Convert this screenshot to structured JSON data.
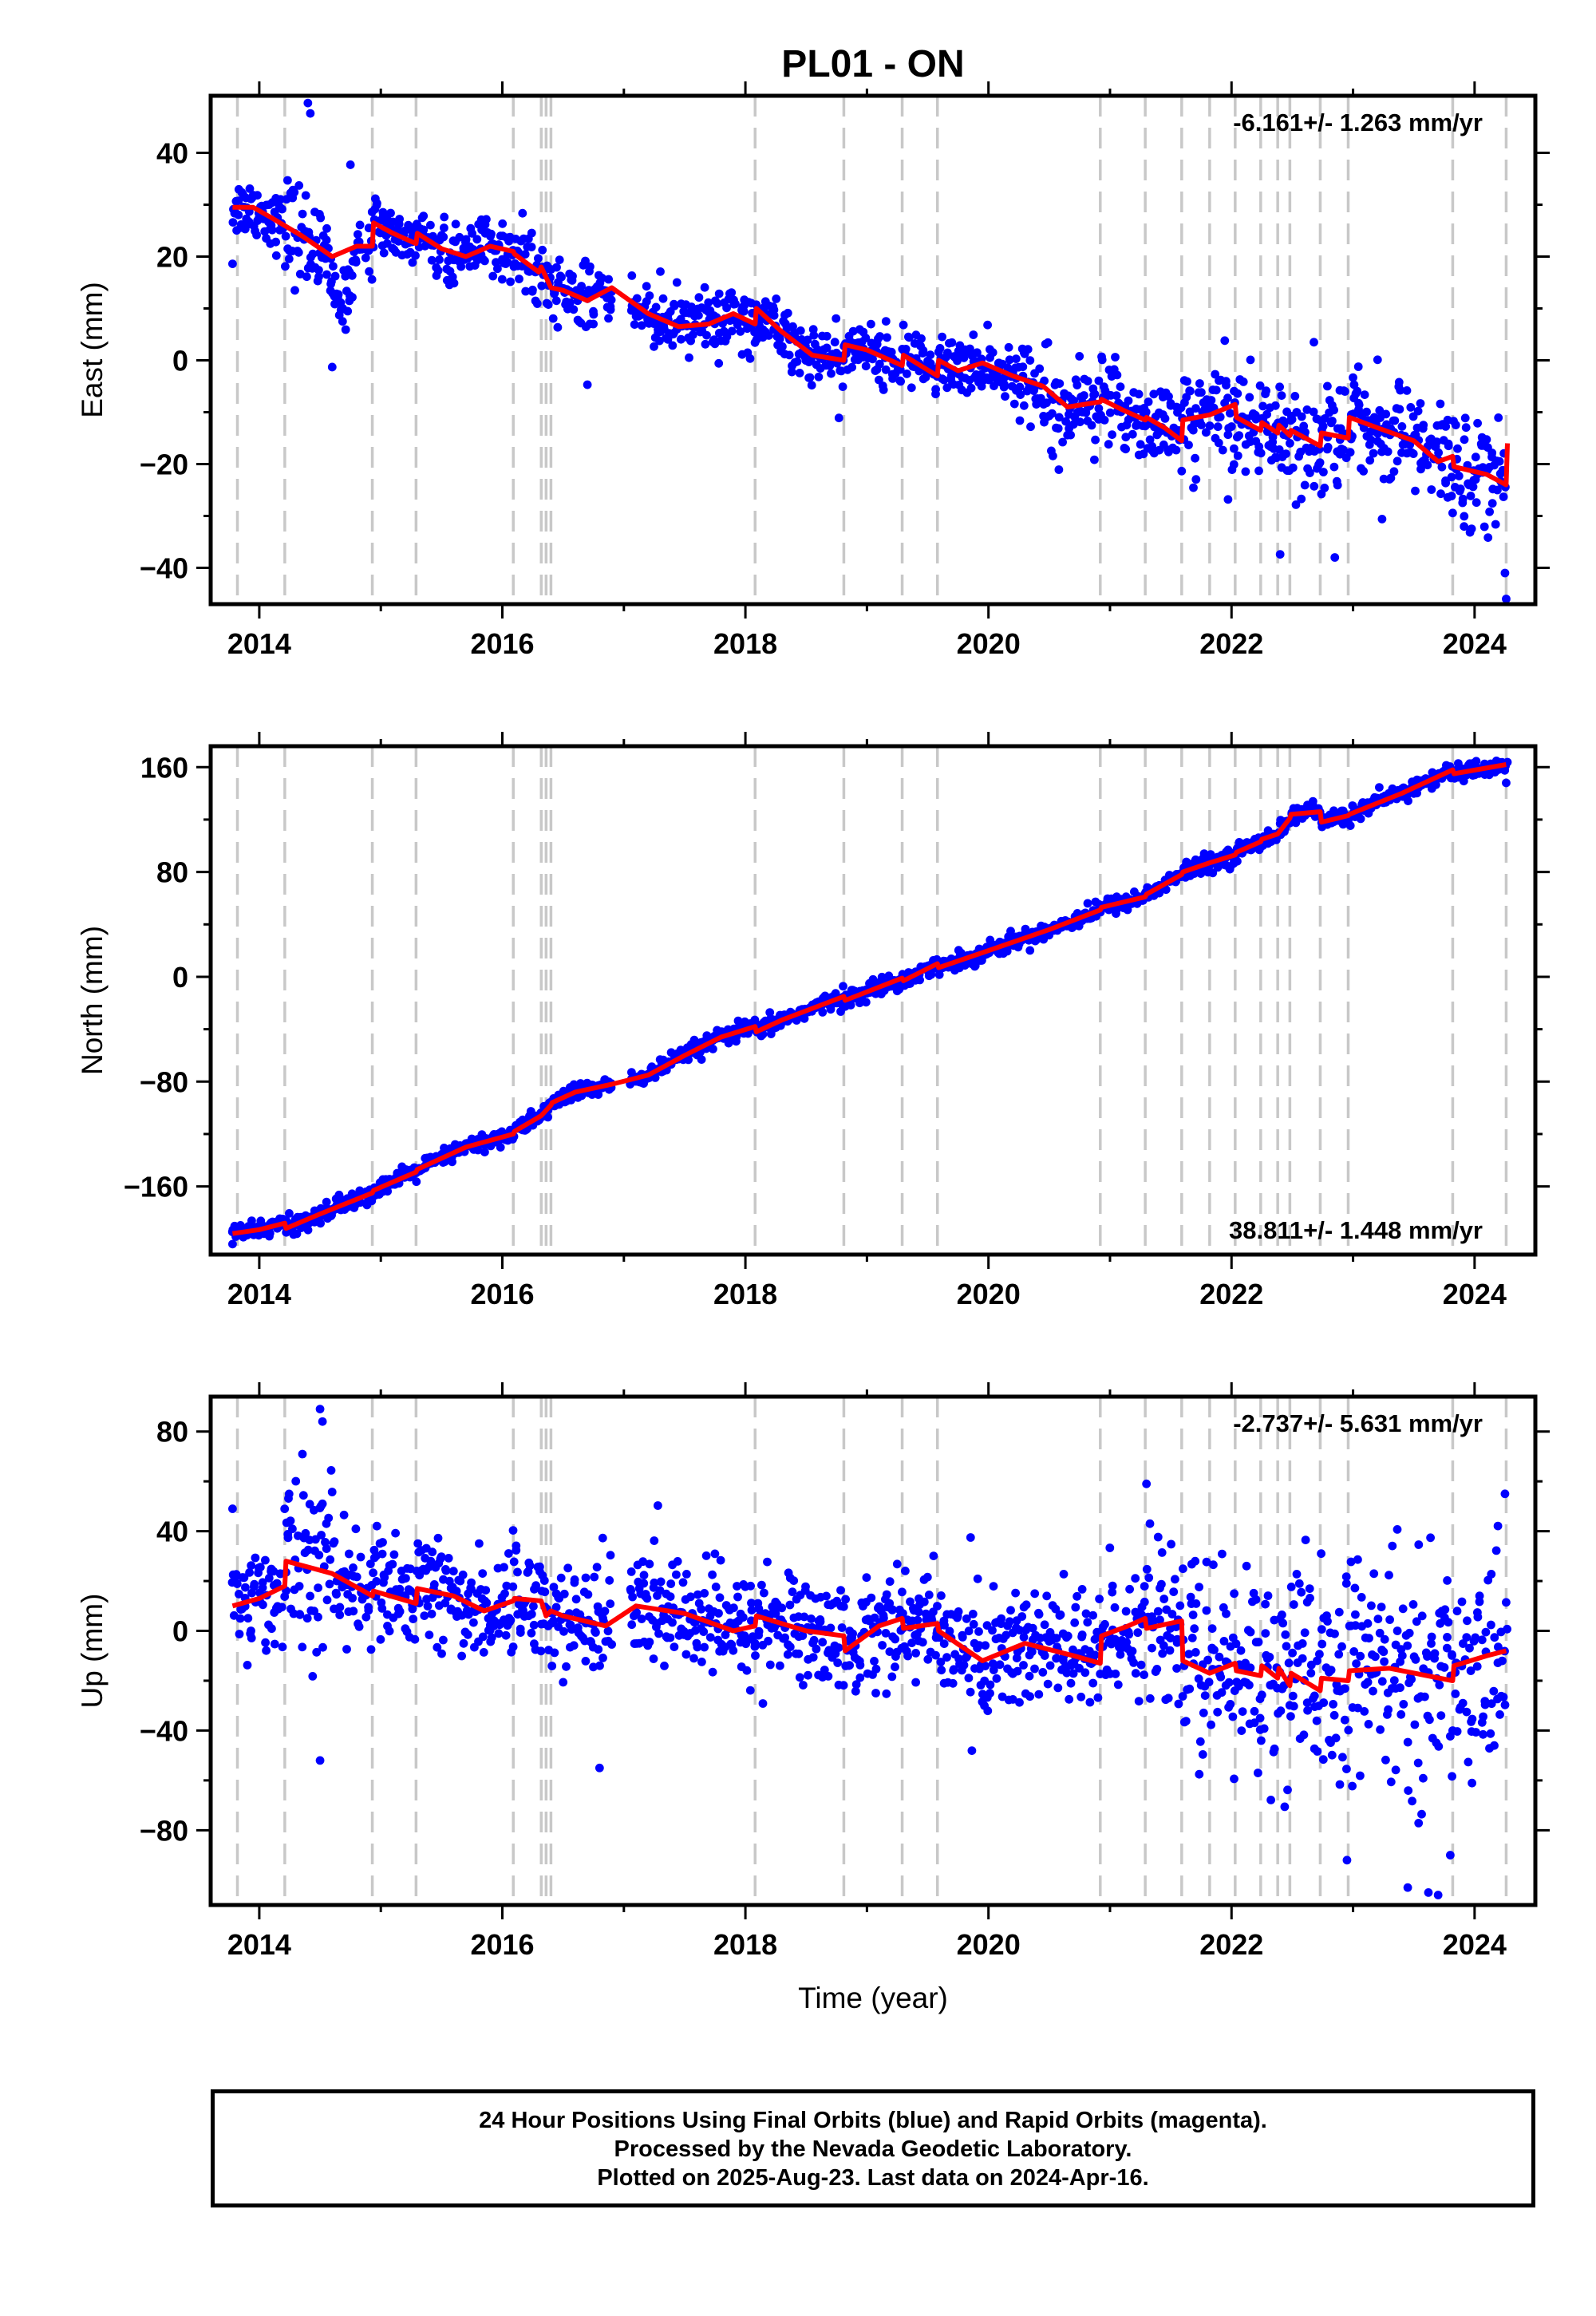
{
  "title": "PL01 - ON",
  "x_axis_label": "Time (year)",
  "footer": {
    "line1": "24 Hour Positions Using Final Orbits (blue) and Rapid Orbits (magenta).",
    "line2": "Processed by the Nevada Geodetic Laboratory.",
    "line3": "Plotted on 2025-Aug-23. Last data on 2024-Apr-16."
  },
  "colors": {
    "points": "#0000ff",
    "fit": "#ff0000",
    "steps": "#c8c8c8",
    "frame": "#000000"
  },
  "chart_data": [
    {
      "type": "scatter",
      "component": "East",
      "ylabel": "East (mm)",
      "rate_label": "-6.161+/- 1.263 mm/yr",
      "xlim": [
        2013.6,
        2024.5
      ],
      "ylim": [
        -47,
        51
      ],
      "x_ticks": [
        "2014",
        "2016",
        "2018",
        "2020",
        "2022",
        "2024"
      ],
      "y_ticks": [
        40,
        20,
        0,
        -20,
        -40
      ],
      "step_epochs": [
        2013.82,
        2014.21,
        2014.93,
        2015.29,
        2016.09,
        2016.32,
        2016.36,
        2016.4,
        2018.08,
        2018.81,
        2019.29,
        2019.58,
        2020.92,
        2021.29,
        2021.59,
        2021.82,
        2022.03,
        2022.24,
        2022.38,
        2022.48,
        2022.73,
        2022.96,
        2023.82,
        2024.26
      ],
      "fit": {
        "x": [
          2013.78,
          2013.95,
          2014.1,
          2014.35,
          2014.6,
          2014.8,
          2014.93,
          2014.94,
          2015.1,
          2015.29,
          2015.3,
          2015.5,
          2015.7,
          2015.9,
          2016.09,
          2016.1,
          2016.3,
          2016.32,
          2016.36,
          2016.4,
          2016.5,
          2016.7,
          2016.9,
          2017.2,
          2017.45,
          2017.7,
          2017.9,
          2018.08,
          2018.09,
          2018.3,
          2018.55,
          2018.81,
          2018.82,
          2019.0,
          2019.29,
          2019.3,
          2019.58,
          2019.59,
          2019.75,
          2019.95,
          2020.2,
          2020.45,
          2020.65,
          2020.92,
          2020.93,
          2021.1,
          2021.29,
          2021.3,
          2021.45,
          2021.59,
          2021.6,
          2021.82,
          2022.03,
          2022.04,
          2022.24,
          2022.25,
          2022.38,
          2022.39,
          2022.48,
          2022.49,
          2022.73,
          2022.74,
          2022.96,
          2022.97,
          2023.2,
          2023.5,
          2023.7,
          2023.82,
          2023.83,
          2024.1,
          2024.26,
          2024.27
        ],
        "y": [
          29.5,
          29.5,
          27.5,
          24,
          20,
          22,
          22,
          26.5,
          24.5,
          22.5,
          24.5,
          21.5,
          20,
          22,
          21,
          20.5,
          17,
          18,
          16,
          14,
          13.5,
          11.5,
          14,
          9,
          6.5,
          7,
          9,
          7,
          10,
          5.5,
          1,
          0,
          3,
          2,
          -1,
          1,
          -3,
          0,
          -2,
          -0.5,
          -3,
          -5,
          -9,
          -8,
          -7.5,
          -9.5,
          -11.5,
          -11,
          -13,
          -15.5,
          -11.5,
          -10.5,
          -8.5,
          -11,
          -13.5,
          -12,
          -14,
          -12.5,
          -14.5,
          -13.5,
          -16.5,
          -14,
          -15,
          -11,
          -13,
          -15.5,
          -19.5,
          -18.5,
          -20.5,
          -22,
          -24,
          -16
        ]
      },
      "samples": [
        {
          "x": 2013.78,
          "y": 18.6
        },
        {
          "x": 2014.4,
          "y": 49.6
        },
        {
          "x": 2014.42,
          "y": 47.6
        },
        {
          "x": 2014.6,
          "y": -1.3
        },
        {
          "x": 2014.75,
          "y": 37.7
        },
        {
          "x": 2016.7,
          "y": -4.7
        },
        {
          "x": 2022.4,
          "y": -37.4
        },
        {
          "x": 2022.85,
          "y": -38.0
        },
        {
          "x": 2024.26,
          "y": -46.0
        },
        {
          "x": 2024.25,
          "y": -41.0
        },
        {
          "x": 2023.05,
          "y": -8.6
        },
        {
          "x": 2017.3,
          "y": 17.1
        }
      ]
    },
    {
      "type": "scatter",
      "component": "North",
      "ylabel": "North (mm)",
      "rate_label": "38.811+/- 1.448 mm/yr",
      "xlim": [
        2013.6,
        2024.5
      ],
      "ylim": [
        -212,
        176
      ],
      "x_ticks": [
        "2014",
        "2016",
        "2018",
        "2020",
        "2022",
        "2024"
      ],
      "y_ticks": [
        160,
        80,
        0,
        -80,
        -160
      ],
      "step_epochs": [
        2013.82,
        2014.21,
        2014.93,
        2015.29,
        2016.09,
        2016.32,
        2016.36,
        2016.4,
        2018.08,
        2018.81,
        2019.29,
        2019.58,
        2020.92,
        2021.29,
        2021.59,
        2021.82,
        2022.03,
        2022.24,
        2022.38,
        2022.48,
        2022.73,
        2022.96,
        2023.82,
        2024.26
      ],
      "fit": {
        "x": [
          2013.78,
          2014.0,
          2014.21,
          2014.22,
          2014.5,
          2014.93,
          2014.94,
          2015.29,
          2015.3,
          2015.7,
          2016.09,
          2016.1,
          2016.32,
          2016.36,
          2016.4,
          2016.41,
          2016.6,
          2016.9,
          2017.2,
          2017.5,
          2017.8,
          2018.08,
          2018.09,
          2018.3,
          2018.81,
          2018.82,
          2019.29,
          2019.3,
          2019.58,
          2019.59,
          2020.0,
          2020.5,
          2020.92,
          2020.93,
          2021.29,
          2021.3,
          2021.59,
          2021.6,
          2021.82,
          2022.03,
          2022.04,
          2022.24,
          2022.25,
          2022.38,
          2022.48,
          2022.49,
          2022.73,
          2022.74,
          2022.96,
          2022.97,
          2023.4,
          2023.82,
          2023.83,
          2024.26
        ],
        "y": [
          -196,
          -193,
          -188,
          -192,
          -181,
          -165,
          -163,
          -149,
          -147,
          -130,
          -120,
          -118,
          -106,
          -102,
          -98,
          -96,
          -88,
          -82,
          -75,
          -60,
          -46,
          -38,
          -42,
          -33,
          -15,
          -18,
          -1,
          -3,
          10,
          7,
          20,
          36,
          51,
          53,
          61,
          63,
          78,
          80,
          87,
          93,
          95,
          103,
          105,
          109,
          121,
          124,
          126,
          118,
          123,
          124,
          140,
          158,
          155,
          162
        ]
      },
      "samples": [
        {
          "x": 2013.78,
          "y": -204.0
        },
        {
          "x": 2024.26,
          "y": 148.0
        },
        {
          "x": 2024.25,
          "y": 162.0
        },
        {
          "x": 2019.05,
          "y": -2.0
        }
      ]
    },
    {
      "type": "scatter",
      "component": "Up",
      "ylabel": "Up (mm)",
      "rate_label": "-2.737+/- 5.631 mm/yr",
      "xlim": [
        2013.6,
        2024.5
      ],
      "ylim": [
        -110,
        94
      ],
      "x_ticks": [
        "2014",
        "2016",
        "2018",
        "2020",
        "2022",
        "2024"
      ],
      "y_ticks": [
        80,
        40,
        0,
        -40,
        -80
      ],
      "step_epochs": [
        2013.82,
        2014.21,
        2014.93,
        2015.29,
        2016.09,
        2016.32,
        2016.36,
        2016.4,
        2018.08,
        2018.81,
        2019.29,
        2019.58,
        2020.92,
        2021.29,
        2021.59,
        2021.82,
        2022.03,
        2022.24,
        2022.38,
        2022.48,
        2022.73,
        2022.96,
        2023.82,
        2024.26
      ],
      "fit": {
        "x": [
          2013.78,
          2014.0,
          2014.21,
          2014.22,
          2014.6,
          2014.93,
          2014.94,
          2015.29,
          2015.3,
          2015.6,
          2015.85,
          2016.09,
          2016.1,
          2016.32,
          2016.36,
          2016.4,
          2016.5,
          2016.85,
          2017.1,
          2017.5,
          2017.9,
          2018.08,
          2018.09,
          2018.5,
          2018.81,
          2018.82,
          2019.1,
          2019.29,
          2019.3,
          2019.58,
          2019.59,
          2019.95,
          2020.3,
          2020.7,
          2020.92,
          2020.93,
          2021.15,
          2021.29,
          2021.3,
          2021.59,
          2021.6,
          2021.82,
          2022.03,
          2022.04,
          2022.24,
          2022.25,
          2022.38,
          2022.39,
          2022.48,
          2022.49,
          2022.73,
          2022.74,
          2022.96,
          2022.97,
          2023.3,
          2023.82,
          2023.83,
          2024.1,
          2024.26
        ],
        "y": [
          10,
          13,
          18,
          28,
          23,
          14,
          16,
          11,
          17,
          14,
          8,
          12,
          13,
          12,
          6,
          8,
          6,
          2,
          10,
          7,
          0,
          2,
          6,
          0,
          -2,
          -8,
          2,
          5,
          1,
          3,
          0,
          -12,
          -5,
          -10,
          -13,
          -2,
          2,
          5,
          1,
          4,
          -12,
          -17,
          -13,
          -16,
          -18,
          -14,
          -19,
          -15,
          -22,
          -17,
          -24,
          -19,
          -20,
          -16,
          -15,
          -20,
          -14,
          -10,
          -8
        ]
      },
      "samples": [
        {
          "x": 2014.5,
          "y": 89.0
        },
        {
          "x": 2014.52,
          "y": 84.0
        },
        {
          "x": 2013.78,
          "y": 49.0
        },
        {
          "x": 2016.8,
          "y": -55.0
        },
        {
          "x": 2023.45,
          "y": -103.0
        },
        {
          "x": 2023.7,
          "y": -106.0
        },
        {
          "x": 2023.62,
          "y": -105.0
        },
        {
          "x": 2024.25,
          "y": 55.0
        },
        {
          "x": 2022.95,
          "y": -92.0
        },
        {
          "x": 2023.8,
          "y": -90.0
        },
        {
          "x": 2021.3,
          "y": 59.0
        },
        {
          "x": 2014.5,
          "y": -52.0
        }
      ]
    }
  ]
}
